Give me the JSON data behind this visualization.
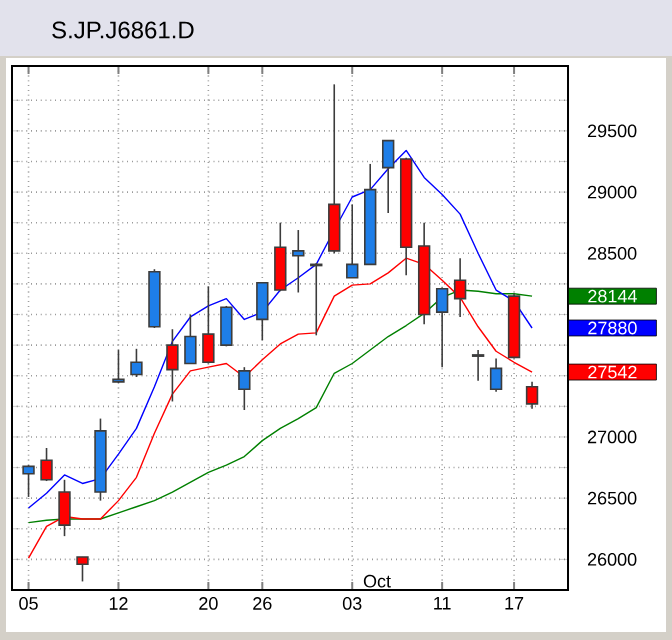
{
  "chart_data": {
    "type": "candlestick",
    "title": "S.JP.J6861.D",
    "categories": [
      "05",
      null,
      null,
      null,
      null,
      "12",
      null,
      null,
      null,
      null,
      "20",
      null,
      null,
      "26",
      null,
      null,
      null,
      null,
      "03",
      null,
      null,
      null,
      null,
      "11",
      null,
      null,
      null,
      "17",
      null
    ],
    "ohlc": [
      [
        26700,
        26770,
        26510,
        26760
      ],
      [
        26810,
        26910,
        26640,
        26650
      ],
      [
        26550,
        26650,
        26190,
        26280
      ],
      [
        26020,
        26020,
        25820,
        25960
      ],
      [
        26550,
        27150,
        26480,
        27050
      ],
      [
        27450,
        27710,
        27440,
        27470
      ],
      [
        27510,
        27720,
        27490,
        27610
      ],
      [
        27900,
        28370,
        27890,
        28350
      ],
      [
        27750,
        27880,
        27290,
        27550
      ],
      [
        27600,
        28000,
        27600,
        27820
      ],
      [
        27840,
        28230,
        27600,
        27610
      ],
      [
        27750,
        28070,
        27740,
        28060
      ],
      [
        27390,
        27570,
        27220,
        27540
      ],
      [
        27960,
        28260,
        27790,
        28260
      ],
      [
        28550,
        28750,
        28190,
        28200
      ],
      [
        28480,
        28690,
        28180,
        28520
      ],
      [
        28400,
        28420,
        27830,
        28410
      ],
      [
        28900,
        29880,
        28500,
        28520
      ],
      [
        28300,
        28900,
        28300,
        28410
      ],
      [
        28410,
        29230,
        28410,
        29020
      ],
      [
        29200,
        29420,
        28830,
        29420
      ],
      [
        29270,
        29280,
        28320,
        28550
      ],
      [
        28560,
        28750,
        27920,
        28000
      ],
      [
        28020,
        28220,
        27570,
        28210
      ],
      [
        28280,
        28460,
        27980,
        28130
      ],
      [
        27660,
        27710,
        27460,
        27670
      ],
      [
        27390,
        27640,
        27370,
        27560
      ],
      [
        28150,
        28170,
        27640,
        27650
      ],
      [
        27410,
        27450,
        27230,
        27270
      ]
    ],
    "colors": [
      "#1e7ee8",
      "#ff0000",
      "#ff0000",
      "#ff0000",
      "#1e7ee8",
      "#1e7ee8",
      "#1e7ee8",
      "#1e7ee8",
      "#ff0000",
      "#1e7ee8",
      "#ff0000",
      "#1e7ee8",
      "#1e7ee8",
      "#1e7ee8",
      "#ff0000",
      "#1e7ee8",
      "#1e7ee8",
      "#ff0000",
      "#1e7ee8",
      "#1e7ee8",
      "#1e7ee8",
      "#ff0000",
      "#ff0000",
      "#1e7ee8",
      "#ff0000",
      "#1e7ee8",
      "#1e7ee8",
      "#ff0000",
      "#ff0000"
    ],
    "series": [
      {
        "type": "line",
        "color": "#008000",
        "values": [
          26300,
          26320,
          26330,
          26330,
          26330,
          26380,
          26430,
          26480,
          26550,
          26630,
          26710,
          26770,
          26840,
          26970,
          27070,
          27150,
          27240,
          27520,
          27600,
          27710,
          27820,
          27910,
          28010,
          28140,
          28200,
          28190,
          28170,
          28170,
          28150
        ]
      },
      {
        "type": "line",
        "color": "#0000ff",
        "values": [
          26420,
          26540,
          26690,
          26620,
          26660,
          26860,
          27070,
          27410,
          27780,
          27980,
          28070,
          28130,
          27960,
          28020,
          28200,
          28300,
          28410,
          28690,
          28960,
          29020,
          29190,
          29340,
          29120,
          28980,
          28820,
          28500,
          28200,
          28110,
          27890
        ]
      },
      {
        "type": "line",
        "color": "#ff0000",
        "values": [
          26010,
          26270,
          26350,
          26330,
          26330,
          26480,
          26670,
          27030,
          27350,
          27540,
          27570,
          27600,
          27490,
          27630,
          27760,
          27840,
          27850,
          28150,
          28240,
          28250,
          28340,
          28460,
          28410,
          28280,
          28140,
          27900,
          27700,
          27610,
          27530
        ]
      }
    ],
    "annotations": [
      "28144",
      "27880",
      "27542",
      "Oct"
    ],
    "ylim": [
      25750,
      30030
    ],
    "yticks": [
      26000,
      {
        "value": 26250,
        "label": null
      },
      26500,
      {
        "value": 26750,
        "label": null
      },
      27000,
      {
        "value": 27250,
        "label": null
      },
      {
        "value": 27500,
        "label": null
      },
      {
        "value": 27750,
        "label": null
      },
      {
        "value": 28000,
        "label": null
      },
      {
        "value": 28250,
        "label": null
      },
      28500,
      {
        "value": 28750,
        "label": null
      },
      29000,
      {
        "value": 29250,
        "label": null
      },
      29500,
      {
        "value": 29750,
        "label": null
      }
    ],
    "grid": true,
    "marker": "none",
    "line_style": "solid"
  }
}
